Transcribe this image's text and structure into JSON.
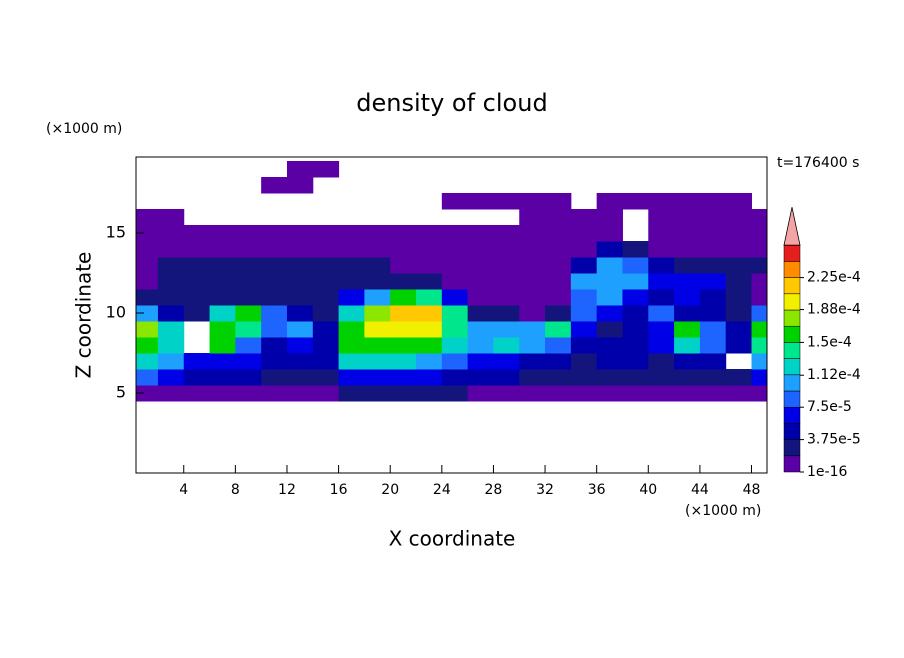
{
  "chart_data": {
    "type": "contour",
    "title": "density of cloud",
    "x_unit_label": "(×1000 m)",
    "y_unit_label": "(×1000 m)",
    "xlabel": "X coordinate",
    "ylabel": "Z coordinate",
    "annotation": "t=176400 s",
    "x": [
      1,
      3,
      5,
      7,
      9,
      11,
      13,
      15,
      17,
      19,
      21,
      23,
      25,
      27,
      29,
      31,
      33,
      35,
      37,
      39,
      41,
      43,
      45,
      47,
      49
    ],
    "y": [
      5,
      6,
      7,
      8,
      9,
      10,
      11,
      12,
      13,
      14,
      15,
      16,
      17,
      18,
      19
    ],
    "values": [
      [
        1e-06,
        1e-06,
        1e-06,
        1e-06,
        1e-06,
        1e-06,
        1e-06,
        1e-06,
        2e-05,
        2e-05,
        2e-05,
        2e-05,
        2e-05,
        1e-06,
        1e-06,
        1e-06,
        1e-06,
        1e-06,
        1e-06,
        1e-06,
        1e-06,
        1e-06,
        1e-06,
        1e-06,
        1e-06
      ],
      [
        8e-05,
        6e-05,
        5e-05,
        4e-05,
        4e-05,
        3e-05,
        3e-05,
        3e-05,
        7e-05,
        7e-05,
        7e-05,
        6e-05,
        5e-05,
        4e-05,
        4e-05,
        3e-05,
        2e-05,
        2e-05,
        2e-05,
        2e-05,
        2e-05,
        3e-05,
        3e-05,
        2e-05,
        6e-05
      ],
      [
        0.00013,
        0.0001,
        6e-05,
        7e-05,
        6e-05,
        5e-05,
        5e-05,
        4e-05,
        0.00012,
        0.00012,
        0.00012,
        0.00011,
        8e-05,
        7e-05,
        6e-05,
        4e-05,
        4e-05,
        3e-05,
        4e-05,
        4e-05,
        3e-05,
        5e-05,
        4e-05,
        0,
        0.0001
      ],
      [
        0.00016,
        0.00012,
        0,
        0.00016,
        9e-05,
        5e-05,
        6e-05,
        4e-05,
        0.00016,
        0.00016,
        0.00016,
        0.00015,
        0.00012,
        0.0001,
        0.00012,
        0.0001,
        9e-05,
        5e-05,
        4e-05,
        5e-05,
        6e-05,
        0.00012,
        8e-05,
        4e-05,
        0.00014
      ],
      [
        0.00018,
        0.00012,
        0,
        0.00016,
        0.00014,
        9e-05,
        0.0001,
        5e-05,
        0.00015,
        0.00019,
        0.0002,
        0.00019,
        0.00014,
        0.0001,
        0.00011,
        0.0001,
        0.00014,
        6e-05,
        3e-05,
        5e-05,
        6e-05,
        0.00016,
        8e-05,
        5e-05,
        0.00015
      ],
      [
        0.0001,
        5e-05,
        3e-05,
        0.00012,
        0.00015,
        8e-05,
        4e-05,
        3e-05,
        0.00013,
        0.00018,
        0.00021,
        0.00022,
        0.00014,
        3e-05,
        2e-05,
        1e-06,
        2e-05,
        8e-05,
        6e-05,
        4e-05,
        9e-05,
        5e-05,
        4e-05,
        2e-05,
        8e-05
      ],
      [
        2e-05,
        2e-05,
        2e-05,
        2e-05,
        2e-05,
        2e-05,
        2e-05,
        2e-05,
        6e-05,
        0.0001,
        0.00015,
        0.00014,
        6e-05,
        1e-06,
        1e-06,
        1e-06,
        1e-06,
        8e-05,
        0.0001,
        7e-05,
        5e-05,
        6e-05,
        4e-05,
        2e-05,
        1e-06
      ],
      [
        1e-06,
        2e-05,
        2e-05,
        2e-05,
        2e-05,
        2e-05,
        2e-05,
        2e-05,
        2e-05,
        2e-05,
        3e-05,
        2e-05,
        1e-06,
        1e-06,
        1e-06,
        1e-06,
        1e-06,
        0.00011,
        0.00011,
        0.00011,
        6e-05,
        6e-05,
        6e-05,
        2e-05,
        1e-06
      ],
      [
        1e-06,
        2e-05,
        2e-05,
        2e-05,
        2e-05,
        2e-05,
        2e-05,
        2e-05,
        2e-05,
        2e-05,
        1e-06,
        1e-06,
        1e-06,
        1e-06,
        1e-06,
        1e-06,
        1e-06,
        5e-05,
        0.00011,
        8e-05,
        4e-05,
        2e-05,
        2e-05,
        2e-05,
        2e-05
      ],
      [
        1e-06,
        1e-06,
        1e-06,
        1e-06,
        1e-06,
        1e-06,
        1e-06,
        1e-06,
        1e-06,
        1e-06,
        1e-06,
        1e-06,
        1e-06,
        1e-06,
        1e-06,
        1e-06,
        1e-06,
        1e-06,
        5e-05,
        3e-05,
        1e-06,
        1e-06,
        1e-06,
        1e-06,
        1e-06
      ],
      [
        1e-06,
        1e-06,
        1e-06,
        1e-06,
        1e-06,
        1e-06,
        1e-06,
        1e-06,
        1e-06,
        1e-06,
        1e-06,
        1e-06,
        1e-06,
        1e-06,
        1e-06,
        1e-06,
        1e-06,
        1e-06,
        1e-06,
        0,
        1e-06,
        1e-06,
        1e-06,
        1e-06,
        1e-06
      ],
      [
        1e-06,
        1e-06,
        0,
        0,
        0,
        0,
        0,
        0,
        0,
        0,
        0,
        0,
        0,
        0,
        0,
        1e-06,
        1e-06,
        1e-06,
        1e-06,
        0,
        1e-06,
        1e-06,
        1e-06,
        1e-06,
        1e-06
      ],
      [
        0,
        0,
        0,
        0,
        0,
        0,
        0,
        0,
        0,
        0,
        0,
        0,
        1e-06,
        1e-06,
        1e-06,
        1e-06,
        1e-06,
        0,
        1e-06,
        1e-06,
        1e-06,
        1e-06,
        1e-06,
        1e-06,
        0
      ],
      [
        0,
        0,
        0,
        0,
        0,
        1e-06,
        1e-06,
        0,
        0,
        0,
        0,
        0,
        0,
        0,
        0,
        0,
        0,
        0,
        0,
        0,
        0,
        0,
        0,
        0,
        0
      ],
      [
        0,
        0,
        0,
        0,
        0,
        0,
        1e-06,
        1e-06,
        0,
        0,
        0,
        0,
        0,
        0,
        0,
        0,
        0,
        0,
        0,
        0,
        0,
        0,
        0,
        0,
        0
      ]
    ],
    "xlim": [
      0.3,
      49.2
    ],
    "ylim": [
      0,
      19.75
    ],
    "xticks": [
      4,
      8,
      12,
      16,
      20,
      24,
      28,
      32,
      36,
      40,
      44,
      48
    ],
    "yticks": [
      5,
      10,
      15
    ],
    "levels": [
      1e-16,
      1.875e-05,
      3.75e-05,
      5.625e-05,
      7.5e-05,
      9.375e-05,
      0.0001125,
      0.00013125,
      0.00015,
      0.00016875,
      0.0001875,
      0.00020625,
      0.000225,
      0.00024375
    ],
    "colors": [
      "#5a00a5",
      "#14147d",
      "#0000aa",
      "#0000e6",
      "#1e64ff",
      "#1ea0ff",
      "#00d2c8",
      "#00e68c",
      "#00d200",
      "#8ce600",
      "#f0f000",
      "#ffc800",
      "#ff8c00",
      "#e61e1e"
    ],
    "extend_color": "#f4a4a4",
    "cbar_ticks": [
      {
        "value": 1e-16,
        "label": "1e-16"
      },
      {
        "value": 3.75e-05,
        "label": "3.75e-5"
      },
      {
        "value": 7.5e-05,
        "label": "7.5e-5"
      },
      {
        "value": 0.000112,
        "label": "1.12e-4"
      },
      {
        "value": 0.00015,
        "label": "1.5e-4"
      },
      {
        "value": 0.000188,
        "label": "1.88e-4"
      },
      {
        "value": 0.000225,
        "label": "2.25e-4"
      }
    ]
  }
}
